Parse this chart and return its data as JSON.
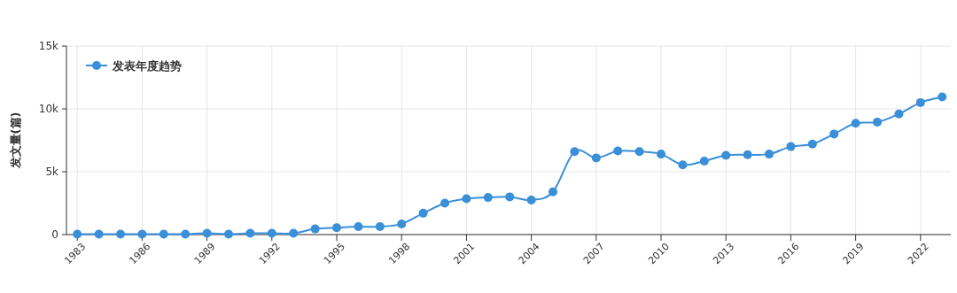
{
  "chart_data": {
    "type": "line",
    "ylabel": "发文量(篇)",
    "legend": "top left",
    "grid": true,
    "marker": "circle",
    "line_style": "solid",
    "x": [
      1983,
      1984,
      1985,
      1986,
      1987,
      1988,
      1989,
      1990,
      1991,
      1992,
      1993,
      1994,
      1995,
      1996,
      1997,
      1998,
      1999,
      2000,
      2001,
      2002,
      2003,
      2004,
      2005,
      2006,
      2007,
      2008,
      2009,
      2010,
      2011,
      2012,
      2013,
      2014,
      2015,
      2016,
      2017,
      2018,
      2019,
      2020,
      2021,
      2022,
      2023
    ],
    "series": [
      {
        "name": "发表年度趋势",
        "color": "#3a8fd9",
        "values": [
          30,
          40,
          40,
          40,
          40,
          40,
          100,
          40,
          100,
          100,
          100,
          450,
          550,
          630,
          630,
          850,
          1700,
          2500,
          2850,
          2950,
          3000,
          2750,
          3400,
          6600,
          6100,
          6650,
          6600,
          6400,
          5550,
          5850,
          6300,
          6350,
          6400,
          7000,
          7200,
          8000,
          8850,
          8950,
          9600,
          10500,
          10950
        ]
      }
    ],
    "xlim": [
      1982.5,
      2023.4
    ],
    "xticks": [
      1983,
      1986,
      1989,
      1992,
      1995,
      1998,
      2001,
      2004,
      2007,
      2010,
      2013,
      2016,
      2019,
      2022
    ],
    "ylim": [
      0,
      15000
    ],
    "yticks": [
      0,
      {
        "value": 5000,
        "label": "5k"
      },
      {
        "value": 10000,
        "label": "10k"
      },
      {
        "value": 15000,
        "label": "15k"
      }
    ]
  }
}
